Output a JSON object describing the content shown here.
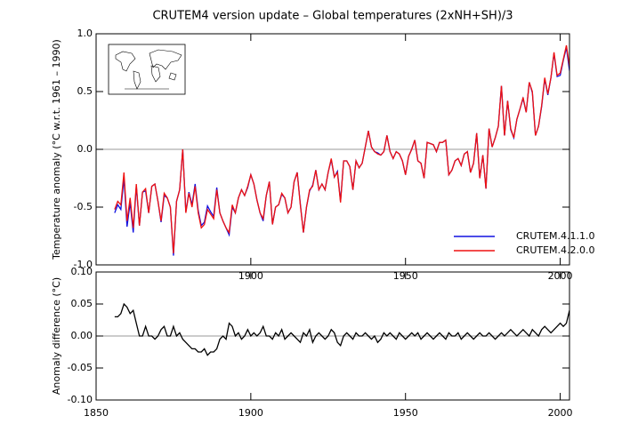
{
  "chart_data": [
    {
      "type": "line",
      "title": "CRUTEM4 version update – Global temperatures (2xNH+SH)/3",
      "y_label": "Temperature anomaly (°C w.r.t. 1961 – 1990)",
      "xlim": [
        1850,
        2003
      ],
      "xticks": [
        1900,
        1950,
        2000
      ],
      "ylim": [
        -1,
        1
      ],
      "yticks": [
        {
          "value": -1,
          "label": "-1.0"
        },
        -0.5,
        {
          "value": 0,
          "label": "0.0"
        },
        0.5,
        {
          "value": 1,
          "label": "1.0"
        }
      ],
      "zero_line": true,
      "legend": "lower right",
      "x": [
        1856,
        1857,
        1858,
        1859,
        1860,
        1861,
        1862,
        1863,
        1864,
        1865,
        1866,
        1867,
        1868,
        1869,
        1870,
        1871,
        1872,
        1873,
        1874,
        1875,
        1876,
        1877,
        1878,
        1879,
        1880,
        1881,
        1882,
        1883,
        1884,
        1885,
        1886,
        1887,
        1888,
        1889,
        1890,
        1891,
        1892,
        1893,
        1894,
        1895,
        1896,
        1897,
        1898,
        1899,
        1900,
        1901,
        1902,
        1903,
        1904,
        1905,
        1906,
        1907,
        1908,
        1909,
        1910,
        1911,
        1912,
        1913,
        1914,
        1915,
        1916,
        1917,
        1918,
        1919,
        1920,
        1921,
        1922,
        1923,
        1924,
        1925,
        1926,
        1927,
        1928,
        1929,
        1930,
        1931,
        1932,
        1933,
        1934,
        1935,
        1936,
        1937,
        1938,
        1939,
        1940,
        1941,
        1942,
        1943,
        1944,
        1945,
        1946,
        1947,
        1948,
        1949,
        1950,
        1951,
        1952,
        1953,
        1954,
        1955,
        1956,
        1957,
        1958,
        1959,
        1960,
        1961,
        1962,
        1963,
        1964,
        1965,
        1966,
        1967,
        1968,
        1969,
        1970,
        1971,
        1972,
        1973,
        1974,
        1975,
        1976,
        1977,
        1978,
        1979,
        1980,
        1981,
        1982,
        1983,
        1984,
        1985,
        1986,
        1987,
        1988,
        1989,
        1990,
        1991,
        1992,
        1993,
        1994,
        1995,
        1996,
        1997,
        1998,
        1999,
        2000,
        2001,
        2002,
        2003
      ],
      "series": [
        {
          "name": "CRUTEM.4.1.1.0",
          "color": "#1010e0",
          "values": [
            -0.55,
            -0.48,
            -0.52,
            -0.25,
            -0.67,
            -0.46,
            -0.72,
            -0.32,
            -0.66,
            -0.37,
            -0.36,
            -0.55,
            -0.32,
            -0.3,
            -0.45,
            -0.63,
            -0.4,
            -0.42,
            -0.5,
            -0.92,
            -0.45,
            -0.35,
            0.0,
            -0.54,
            -0.37,
            -0.48,
            -0.3,
            -0.53,
            -0.66,
            -0.63,
            -0.49,
            -0.54,
            -0.58,
            -0.33,
            -0.55,
            -0.62,
            -0.68,
            -0.74,
            -0.5,
            -0.55,
            -0.42,
            -0.35,
            -0.4,
            -0.33,
            -0.22,
            -0.3,
            -0.44,
            -0.55,
            -0.62,
            -0.4,
            -0.28,
            -0.65,
            -0.5,
            -0.48,
            -0.39,
            -0.42,
            -0.55,
            -0.5,
            -0.28,
            -0.2,
            -0.47,
            -0.72,
            -0.5,
            -0.36,
            -0.31,
            -0.18,
            -0.35,
            -0.3,
            -0.35,
            -0.2,
            -0.09,
            -0.24,
            -0.19,
            -0.45,
            -0.1,
            -0.1,
            -0.15,
            -0.35,
            -0.1,
            -0.16,
            -0.12,
            0.02,
            0.16,
            0.02,
            -0.02,
            -0.03,
            -0.05,
            -0.02,
            0.12,
            -0.02,
            -0.08,
            -0.02,
            -0.04,
            -0.1,
            -0.22,
            -0.06,
            0.0,
            0.08,
            -0.1,
            -0.12,
            -0.25,
            0.06,
            0.05,
            0.04,
            -0.02,
            0.06,
            0.06,
            0.08,
            -0.22,
            -0.18,
            -0.1,
            -0.08,
            -0.14,
            -0.04,
            -0.02,
            -0.2,
            -0.12,
            0.14,
            -0.25,
            -0.05,
            -0.34,
            0.18,
            0.02,
            0.1,
            0.2,
            0.55,
            0.12,
            0.42,
            0.17,
            0.1,
            0.26,
            0.35,
            0.44,
            0.32,
            0.58,
            0.49,
            0.12,
            0.2,
            0.37,
            0.61,
            0.47,
            0.62,
            0.83,
            0.63,
            0.64,
            0.77,
            0.88,
            0.68
          ]
        },
        {
          "name": "CRUTEM.4.2.0.0",
          "color": "#ee1010",
          "values": [
            -0.52,
            -0.45,
            -0.48,
            -0.2,
            -0.62,
            -0.42,
            -0.68,
            -0.3,
            -0.66,
            -0.37,
            -0.34,
            -0.55,
            -0.32,
            -0.3,
            -0.45,
            -0.62,
            -0.38,
            -0.42,
            -0.5,
            -0.9,
            -0.45,
            -0.35,
            0.0,
            -0.55,
            -0.38,
            -0.5,
            -0.32,
            -0.55,
            -0.68,
            -0.65,
            -0.52,
            -0.56,
            -0.6,
            -0.35,
            -0.55,
            -0.62,
            -0.68,
            -0.72,
            -0.48,
            -0.55,
            -0.42,
            -0.35,
            -0.4,
            -0.32,
            -0.22,
            -0.3,
            -0.44,
            -0.55,
            -0.6,
            -0.4,
            -0.28,
            -0.65,
            -0.5,
            -0.48,
            -0.38,
            -0.42,
            -0.55,
            -0.5,
            -0.28,
            -0.2,
            -0.48,
            -0.72,
            -0.5,
            -0.35,
            -0.32,
            -0.18,
            -0.35,
            -0.3,
            -0.35,
            -0.2,
            -0.08,
            -0.24,
            -0.2,
            -0.46,
            -0.1,
            -0.1,
            -0.15,
            -0.35,
            -0.1,
            -0.16,
            -0.12,
            0.02,
            0.16,
            0.02,
            -0.02,
            -0.04,
            -0.05,
            -0.02,
            0.12,
            -0.02,
            -0.08,
            -0.02,
            -0.04,
            -0.1,
            -0.22,
            -0.06,
            0.0,
            0.08,
            -0.1,
            -0.12,
            -0.25,
            0.06,
            0.05,
            0.04,
            -0.02,
            0.06,
            0.06,
            0.08,
            -0.22,
            -0.18,
            -0.1,
            -0.08,
            -0.14,
            -0.04,
            -0.02,
            -0.2,
            -0.12,
            0.14,
            -0.25,
            -0.05,
            -0.34,
            0.18,
            0.02,
            0.1,
            0.2,
            0.55,
            0.12,
            0.42,
            0.18,
            0.1,
            0.26,
            0.35,
            0.45,
            0.32,
            0.58,
            0.5,
            0.12,
            0.2,
            0.38,
            0.62,
            0.48,
            0.62,
            0.84,
            0.64,
            0.66,
            0.78,
            0.9,
            0.72
          ]
        }
      ]
    },
    {
      "type": "line",
      "y_label": "Anomaly difference (°C)",
      "xlim": [
        1850,
        2003
      ],
      "xticks": [
        1850,
        1900,
        1950,
        2000
      ],
      "ylim": [
        -0.1,
        0.1
      ],
      "yticks": [
        {
          "value": -0.1,
          "label": "-0.10"
        },
        -0.05,
        {
          "value": 0,
          "label": "0.00"
        },
        0.05,
        {
          "value": 0.1,
          "label": "0.10"
        }
      ],
      "zero_line": true,
      "x": [
        1856,
        1857,
        1858,
        1859,
        1860,
        1861,
        1862,
        1863,
        1864,
        1865,
        1866,
        1867,
        1868,
        1869,
        1870,
        1871,
        1872,
        1873,
        1874,
        1875,
        1876,
        1877,
        1878,
        1879,
        1880,
        1881,
        1882,
        1883,
        1884,
        1885,
        1886,
        1887,
        1888,
        1889,
        1890,
        1891,
        1892,
        1893,
        1894,
        1895,
        1896,
        1897,
        1898,
        1899,
        1900,
        1901,
        1902,
        1903,
        1904,
        1905,
        1906,
        1907,
        1908,
        1909,
        1910,
        1911,
        1912,
        1913,
        1914,
        1915,
        1916,
        1917,
        1918,
        1919,
        1920,
        1921,
        1922,
        1923,
        1924,
        1925,
        1926,
        1927,
        1928,
        1929,
        1930,
        1931,
        1932,
        1933,
        1934,
        1935,
        1936,
        1937,
        1938,
        1939,
        1940,
        1941,
        1942,
        1943,
        1944,
        1945,
        1946,
        1947,
        1948,
        1949,
        1950,
        1951,
        1952,
        1953,
        1954,
        1955,
        1956,
        1957,
        1958,
        1959,
        1960,
        1961,
        1962,
        1963,
        1964,
        1965,
        1966,
        1967,
        1968,
        1969,
        1970,
        1971,
        1972,
        1973,
        1974,
        1975,
        1976,
        1977,
        1978,
        1979,
        1980,
        1981,
        1982,
        1983,
        1984,
        1985,
        1986,
        1987,
        1988,
        1989,
        1990,
        1991,
        1992,
        1993,
        1994,
        1995,
        1996,
        1997,
        1998,
        1999,
        2000,
        2001,
        2002,
        2003
      ],
      "color": "#000000",
      "values": [
        0.03,
        0.03,
        0.035,
        0.05,
        0.045,
        0.035,
        0.04,
        0.02,
        0.0,
        0.0,
        0.015,
        0.0,
        0.0,
        -0.005,
        0.0,
        0.01,
        0.015,
        0.0,
        0.0,
        0.015,
        0.0,
        0.005,
        -0.005,
        -0.01,
        -0.015,
        -0.02,
        -0.02,
        -0.025,
        -0.025,
        -0.02,
        -0.03,
        -0.025,
        -0.025,
        -0.02,
        -0.005,
        0.0,
        -0.005,
        0.02,
        0.015,
        0.0,
        0.005,
        -0.005,
        0.0,
        0.01,
        0.0,
        0.005,
        0.0,
        0.005,
        0.015,
        0.0,
        0.0,
        -0.005,
        0.005,
        0.0,
        0.01,
        -0.005,
        0.0,
        0.005,
        0.0,
        -0.005,
        -0.01,
        0.005,
        0.0,
        0.01,
        -0.01,
        0.0,
        0.005,
        0.0,
        -0.005,
        0.0,
        0.01,
        0.005,
        -0.01,
        -0.015,
        0.0,
        0.005,
        0.0,
        -0.005,
        0.005,
        0.0,
        0.0,
        0.005,
        0.0,
        -0.005,
        0.0,
        -0.01,
        -0.005,
        0.005,
        0.0,
        0.005,
        0.0,
        -0.005,
        0.005,
        0.0,
        -0.005,
        0.0,
        0.005,
        0.0,
        0.005,
        -0.005,
        0.0,
        0.005,
        0.0,
        -0.005,
        0.0,
        0.005,
        0.0,
        -0.005,
        0.005,
        0.0,
        0.0,
        0.005,
        -0.005,
        0.0,
        0.005,
        0.0,
        -0.005,
        0.0,
        0.005,
        0.0,
        0.0,
        0.005,
        0.0,
        -0.005,
        0.0,
        0.005,
        0.0,
        0.005,
        0.01,
        0.005,
        0.0,
        0.005,
        0.01,
        0.005,
        0.0,
        0.01,
        0.005,
        0.0,
        0.01,
        0.015,
        0.01,
        0.005,
        0.01,
        0.015,
        0.02,
        0.015,
        0.02,
        0.04
      ]
    }
  ]
}
